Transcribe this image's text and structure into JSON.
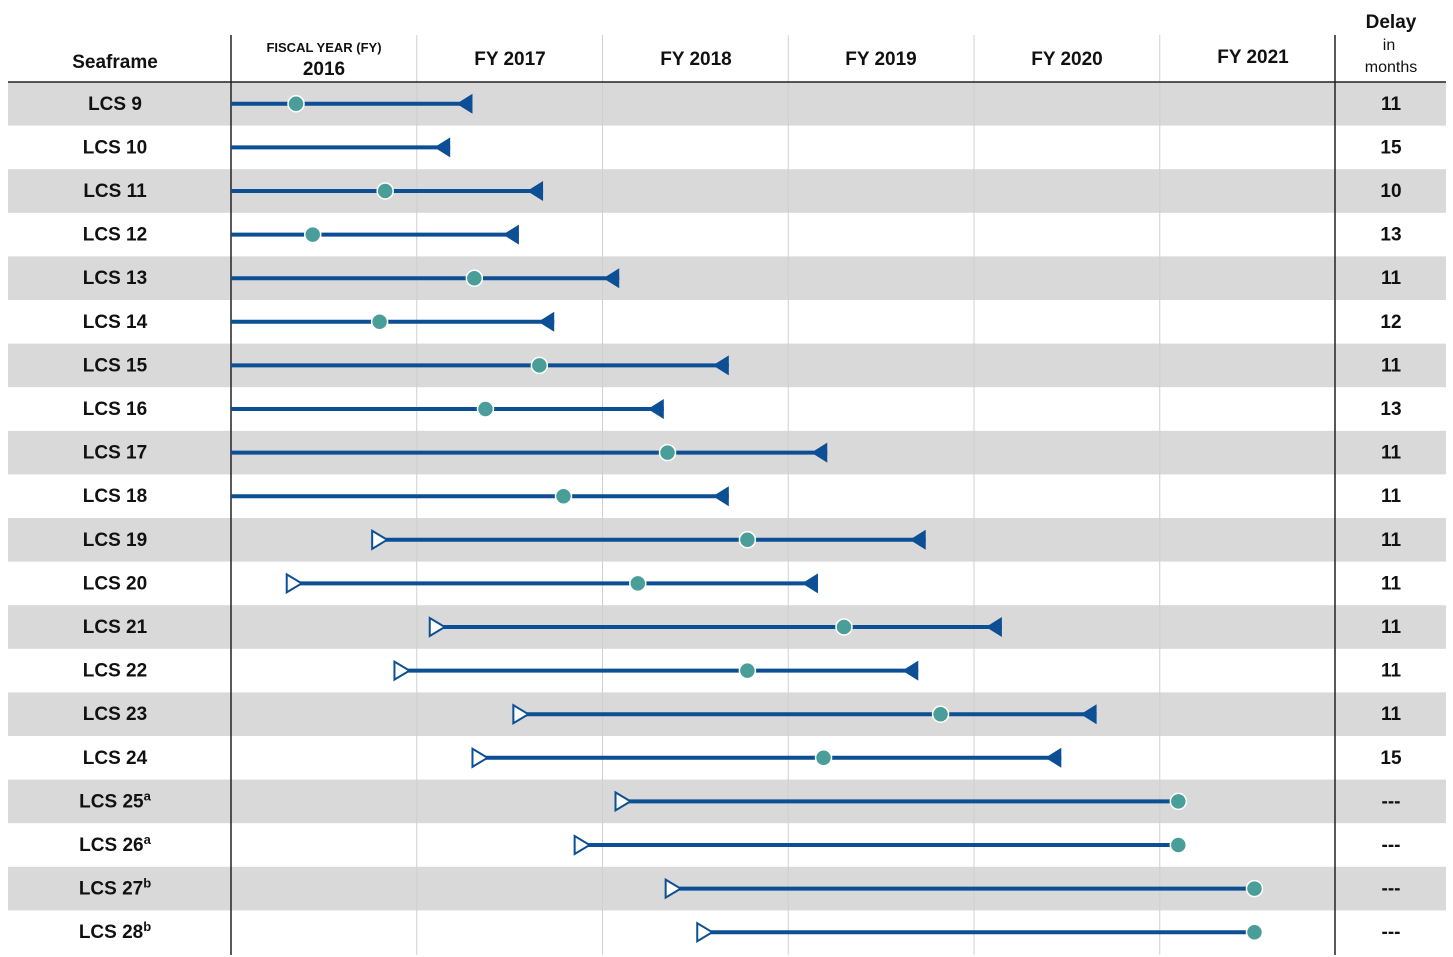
{
  "chart_data": {
    "type": "gantt",
    "headers": {
      "seaframe": "Seaframe",
      "fy_first_small": "FISCAL YEAR (FY)",
      "fy_first_year": "2016",
      "years": [
        "FY 2017",
        "FY 2018",
        "FY 2019",
        "FY 2020",
        "FY 2021"
      ],
      "delay_line1": "Delay",
      "delay_line2": "in",
      "delay_line3": "months"
    },
    "x_range": [
      2016.0,
      2022.0
    ],
    "rows": [
      {
        "label": "LCS 9",
        "sup": "",
        "start": null,
        "start_open": false,
        "circle": 2016.35,
        "end": 2017.3,
        "end_marker": "triangle",
        "delay": "11"
      },
      {
        "label": "LCS 10",
        "sup": "",
        "start": null,
        "start_open": false,
        "circle": null,
        "end": 2017.18,
        "end_marker": "triangle",
        "delay": "15"
      },
      {
        "label": "LCS 11",
        "sup": "",
        "start": null,
        "start_open": false,
        "circle": 2016.83,
        "end": 2017.68,
        "end_marker": "triangle",
        "delay": "10"
      },
      {
        "label": "LCS 12",
        "sup": "",
        "start": null,
        "start_open": false,
        "circle": 2016.44,
        "end": 2017.55,
        "end_marker": "triangle",
        "delay": "13"
      },
      {
        "label": "LCS 13",
        "sup": "",
        "start": null,
        "start_open": false,
        "circle": 2017.31,
        "end": 2018.09,
        "end_marker": "triangle",
        "delay": "11"
      },
      {
        "label": "LCS 14",
        "sup": "",
        "start": null,
        "start_open": false,
        "circle": 2016.8,
        "end": 2017.74,
        "end_marker": "triangle",
        "delay": "12"
      },
      {
        "label": "LCS 15",
        "sup": "",
        "start": null,
        "start_open": false,
        "circle": 2017.66,
        "end": 2018.68,
        "end_marker": "triangle",
        "delay": "11"
      },
      {
        "label": "LCS 16",
        "sup": "",
        "start": null,
        "start_open": false,
        "circle": 2017.37,
        "end": 2018.33,
        "end_marker": "triangle",
        "delay": "13"
      },
      {
        "label": "LCS 17",
        "sup": "",
        "start": null,
        "start_open": false,
        "circle": 2018.35,
        "end": 2019.21,
        "end_marker": "triangle",
        "delay": "11"
      },
      {
        "label": "LCS 18",
        "sup": "",
        "start": null,
        "start_open": false,
        "circle": 2017.79,
        "end": 2018.68,
        "end_marker": "triangle",
        "delay": "11"
      },
      {
        "label": "LCS 19",
        "sup": "",
        "start": 2016.76,
        "start_open": true,
        "circle": 2018.78,
        "end": 2019.74,
        "end_marker": "triangle",
        "delay": "11"
      },
      {
        "label": "LCS 20",
        "sup": "",
        "start": 2016.3,
        "start_open": true,
        "circle": 2018.19,
        "end": 2019.16,
        "end_marker": "triangle",
        "delay": "11"
      },
      {
        "label": "LCS 21",
        "sup": "",
        "start": 2017.07,
        "start_open": true,
        "circle": 2019.3,
        "end": 2020.15,
        "end_marker": "triangle",
        "delay": "11"
      },
      {
        "label": "LCS 22",
        "sup": "",
        "start": 2016.88,
        "start_open": true,
        "circle": 2018.78,
        "end": 2019.7,
        "end_marker": "triangle",
        "delay": "11"
      },
      {
        "label": "LCS 23",
        "sup": "",
        "start": 2017.52,
        "start_open": true,
        "circle": 2019.82,
        "end": 2020.66,
        "end_marker": "triangle",
        "delay": "11"
      },
      {
        "label": "LCS 24",
        "sup": "",
        "start": 2017.3,
        "start_open": true,
        "circle": 2019.19,
        "end": 2020.47,
        "end_marker": "triangle",
        "delay": "15"
      },
      {
        "label": "LCS 25",
        "sup": "a",
        "start": 2018.07,
        "start_open": true,
        "circle": 2021.1,
        "end": null,
        "end_marker": "none",
        "delay": "---"
      },
      {
        "label": "LCS 26",
        "sup": "a",
        "start": 2017.85,
        "start_open": true,
        "circle": 2021.1,
        "end": null,
        "end_marker": "none",
        "delay": "---"
      },
      {
        "label": "LCS 27",
        "sup": "b",
        "start": 2018.34,
        "start_open": true,
        "circle": 2021.51,
        "end": null,
        "end_marker": "none",
        "delay": "---"
      },
      {
        "label": "LCS 28",
        "sup": "b",
        "start": 2018.51,
        "start_open": true,
        "circle": 2021.51,
        "end": null,
        "end_marker": "none",
        "delay": "---"
      }
    ],
    "colors": {
      "bar": "#0d4f94",
      "circle": "#4a9e99",
      "row_shade": "#d9d9d9",
      "grid": "#d0d0d0",
      "axis": "#222222"
    }
  }
}
